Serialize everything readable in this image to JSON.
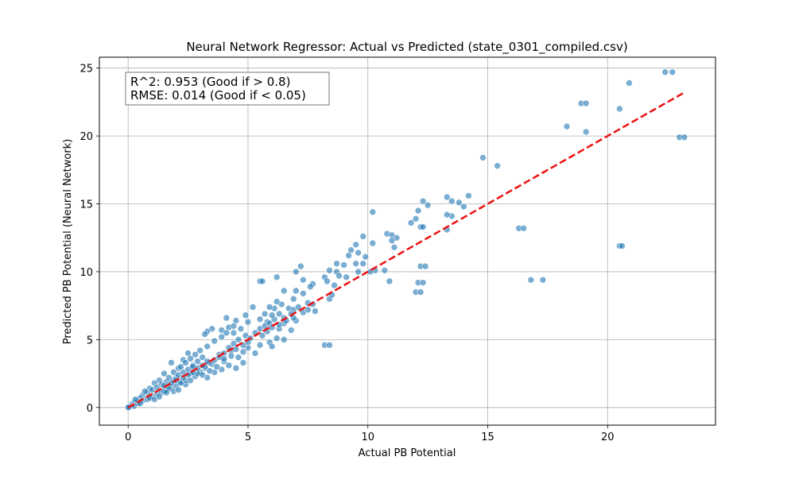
{
  "chart_data": {
    "type": "scatter",
    "title": "Neural Network Regressor: Actual vs Predicted (state_0301_compiled.csv)",
    "xlabel": "Actual PB Potential",
    "ylabel": "Predicted PB Potential (Neural Network)",
    "xlim": [
      -1.2,
      24.5
    ],
    "ylim": [
      -1.3,
      25.8
    ],
    "xticks": [
      0,
      5,
      10,
      15,
      20
    ],
    "yticks": [
      0,
      5,
      10,
      15,
      20,
      25
    ],
    "grid": true,
    "point_color": "#1f77b4",
    "point_edge_color": "#ffffff",
    "point_opacity": 0.6,
    "annotation": {
      "line1": "R^2: 0.953 (Good if > 0.8)",
      "line2": "RMSE: 0.014 (Good if < 0.05)",
      "placement": "top-left"
    },
    "reference_line": {
      "style": "dashed",
      "color": "#ee1111",
      "x": [
        0,
        23.2
      ],
      "y": [
        0,
        23.2
      ]
    },
    "points": [
      [
        22.4,
        24.7
      ],
      [
        22.7,
        24.7
      ],
      [
        20.9,
        23.9
      ],
      [
        18.9,
        22.4
      ],
      [
        19.1,
        22.4
      ],
      [
        20.5,
        22.0
      ],
      [
        18.3,
        20.7
      ],
      [
        19.1,
        20.3
      ],
      [
        23.0,
        19.9
      ],
      [
        23.2,
        19.9
      ],
      [
        14.8,
        18.4
      ],
      [
        15.4,
        17.8
      ],
      [
        14.2,
        15.6
      ],
      [
        13.3,
        15.5
      ],
      [
        13.5,
        15.2
      ],
      [
        13.8,
        15.1
      ],
      [
        12.3,
        15.2
      ],
      [
        12.5,
        14.9
      ],
      [
        14.0,
        14.8
      ],
      [
        13.5,
        14.1
      ],
      [
        13.3,
        14.2
      ],
      [
        12.1,
        14.5
      ],
      [
        12.0,
        13.9
      ],
      [
        11.8,
        13.6
      ],
      [
        12.2,
        13.3
      ],
      [
        12.3,
        13.3
      ],
      [
        10.2,
        14.4
      ],
      [
        13.3,
        13.1
      ],
      [
        10.8,
        12.8
      ],
      [
        11.0,
        12.7
      ],
      [
        11.2,
        12.5
      ],
      [
        11.0,
        12.3
      ],
      [
        9.8,
        12.6
      ],
      [
        10.2,
        12.1
      ],
      [
        9.5,
        12.0
      ],
      [
        11.1,
        11.8
      ],
      [
        9.3,
        11.6
      ],
      [
        9.6,
        11.4
      ],
      [
        9.2,
        11.2
      ],
      [
        9.9,
        11.1
      ],
      [
        9.5,
        10.6
      ],
      [
        9.8,
        10.6
      ],
      [
        8.7,
        10.6
      ],
      [
        9.0,
        10.5
      ],
      [
        10.3,
        10.1
      ],
      [
        10.7,
        10.1
      ],
      [
        10.1,
        10.0
      ],
      [
        9.6,
        10.0
      ],
      [
        8.7,
        10.0
      ],
      [
        8.4,
        10.1
      ],
      [
        8.2,
        9.6
      ],
      [
        8.8,
        9.7
      ],
      [
        9.1,
        9.6
      ],
      [
        8.3,
        9.3
      ],
      [
        8.6,
        9.0
      ],
      [
        7.7,
        9.1
      ],
      [
        7.3,
        9.4
      ],
      [
        7.0,
        10.0
      ],
      [
        7.2,
        10.4
      ],
      [
        10.9,
        9.3
      ],
      [
        16.3,
        13.2
      ],
      [
        16.5,
        13.2
      ],
      [
        12.2,
        10.4
      ],
      [
        12.4,
        10.4
      ],
      [
        12.1,
        9.2
      ],
      [
        12.3,
        9.2
      ],
      [
        12.0,
        8.5
      ],
      [
        12.2,
        8.5
      ],
      [
        16.8,
        9.4
      ],
      [
        17.3,
        9.4
      ],
      [
        20.5,
        11.9
      ],
      [
        20.6,
        11.9
      ],
      [
        5.5,
        9.3
      ],
      [
        5.6,
        9.3
      ],
      [
        6.2,
        9.6
      ],
      [
        8.2,
        4.6
      ],
      [
        8.4,
        4.6
      ],
      [
        7.8,
        7.1
      ],
      [
        8.4,
        8.0
      ],
      [
        8.5,
        8.3
      ],
      [
        7.6,
        8.9
      ],
      [
        7.3,
        8.4
      ],
      [
        7.0,
        8.6
      ],
      [
        6.9,
        8.0
      ],
      [
        6.5,
        8.6
      ],
      [
        6.4,
        7.6
      ],
      [
        6.2,
        7.8
      ],
      [
        6.7,
        7.3
      ],
      [
        6.9,
        7.2
      ],
      [
        7.5,
        7.7
      ],
      [
        7.0,
        6.4
      ],
      [
        6.5,
        6.2
      ],
      [
        6.3,
        6.9
      ],
      [
        6.1,
        7.3
      ],
      [
        5.9,
        7.4
      ],
      [
        5.8,
        6.3
      ],
      [
        5.7,
        6.9
      ],
      [
        5.5,
        6.5
      ],
      [
        5.2,
        7.4
      ],
      [
        5.0,
        6.3
      ],
      [
        4.9,
        6.8
      ],
      [
        4.5,
        6.4
      ],
      [
        4.7,
        5.8
      ],
      [
        4.1,
        6.6
      ],
      [
        4.4,
        5.5
      ],
      [
        4.2,
        5.9
      ],
      [
        3.9,
        5.7
      ],
      [
        3.5,
        5.8
      ],
      [
        3.3,
        5.6
      ],
      [
        3.2,
        5.4
      ],
      [
        6.8,
        5.7
      ],
      [
        6.5,
        5.0
      ],
      [
        6.2,
        5.1
      ],
      [
        5.9,
        4.8
      ],
      [
        6.0,
        4.5
      ],
      [
        5.5,
        4.6
      ],
      [
        5.3,
        4.0
      ],
      [
        5.0,
        4.4
      ],
      [
        4.8,
        4.1
      ],
      [
        4.6,
        3.7
      ],
      [
        4.3,
        4.2
      ],
      [
        4.0,
        3.4
      ],
      [
        3.8,
        3.9
      ],
      [
        3.5,
        3.2
      ],
      [
        3.2,
        2.9
      ],
      [
        3.1,
        3.7
      ],
      [
        2.9,
        3.4
      ],
      [
        2.7,
        3.1
      ],
      [
        2.6,
        2.5
      ],
      [
        2.8,
        2.3
      ],
      [
        3.3,
        2.2
      ],
      [
        3.6,
        2.6
      ],
      [
        3.9,
        2.8
      ],
      [
        4.2,
        3.1
      ],
      [
        4.5,
        2.9
      ],
      [
        4.8,
        3.3
      ],
      [
        2.5,
        4.0
      ],
      [
        2.3,
        3.5
      ],
      [
        2.1,
        2.9
      ],
      [
        1.9,
        2.6
      ],
      [
        2.0,
        2.2
      ],
      [
        2.2,
        1.9
      ],
      [
        2.4,
        1.7
      ],
      [
        1.8,
        3.3
      ],
      [
        1.5,
        2.5
      ],
      [
        1.3,
        2.0
      ],
      [
        1.1,
        1.8
      ],
      [
        0.9,
        1.4
      ],
      [
        0.8,
        1.1
      ],
      [
        0.6,
        0.9
      ],
      [
        0.5,
        0.7
      ],
      [
        0.4,
        0.5
      ],
      [
        0.3,
        0.4
      ],
      [
        0.2,
        0.3
      ],
      [
        0.15,
        0.2
      ],
      [
        0.1,
        0.1
      ],
      [
        0.05,
        0.05
      ],
      [
        0.0,
        0.0
      ],
      [
        0.25,
        0.1
      ],
      [
        0.4,
        0.3
      ],
      [
        0.6,
        0.5
      ],
      [
        0.8,
        0.6
      ],
      [
        1.0,
        0.8
      ],
      [
        1.2,
        1.0
      ],
      [
        1.4,
        1.1
      ],
      [
        1.6,
        1.3
      ],
      [
        1.8,
        1.5
      ],
      [
        2.0,
        1.6
      ],
      [
        2.2,
        1.8
      ],
      [
        2.4,
        2.0
      ],
      [
        1.0,
        1.3
      ],
      [
        1.2,
        1.5
      ],
      [
        1.4,
        1.7
      ],
      [
        1.6,
        1.9
      ],
      [
        1.7,
        2.2
      ],
      [
        1.9,
        2.0
      ],
      [
        2.1,
        2.4
      ],
      [
        2.3,
        2.6
      ],
      [
        2.5,
        2.8
      ],
      [
        2.7,
        3.0
      ],
      [
        3.0,
        2.6
      ],
      [
        3.2,
        3.0
      ],
      [
        3.4,
        3.3
      ],
      [
        3.6,
        3.5
      ],
      [
        3.8,
        3.7
      ],
      [
        4.0,
        4.0
      ],
      [
        4.2,
        4.4
      ],
      [
        4.4,
        4.7
      ],
      [
        4.6,
        5.0
      ],
      [
        4.9,
        5.3
      ],
      [
        5.1,
        5.1
      ],
      [
        5.3,
        5.5
      ],
      [
        5.5,
        5.8
      ],
      [
        5.7,
        6.0
      ],
      [
        5.9,
        6.2
      ],
      [
        6.1,
        6.5
      ],
      [
        6.3,
        5.8
      ],
      [
        6.5,
        6.6
      ],
      [
        6.8,
        6.9
      ],
      [
        7.1,
        7.4
      ],
      [
        0.7,
        1.2
      ],
      [
        0.9,
        0.7
      ],
      [
        1.1,
        0.6
      ],
      [
        1.3,
        0.8
      ],
      [
        1.5,
        1.2
      ],
      [
        1.7,
        1.4
      ],
      [
        1.9,
        1.2
      ],
      [
        2.1,
        1.3
      ],
      [
        0.3,
        0.6
      ],
      [
        0.5,
        0.3
      ],
      [
        2.6,
        2.0
      ],
      [
        2.9,
        2.5
      ],
      [
        3.1,
        2.4
      ],
      [
        3.4,
        2.7
      ],
      [
        3.7,
        3.0
      ],
      [
        4.0,
        3.6
      ],
      [
        4.3,
        3.8
      ],
      [
        4.5,
        4.3
      ],
      [
        4.8,
        4.6
      ],
      [
        5.0,
        4.8
      ],
      [
        2.2,
        3.0
      ],
      [
        2.4,
        3.3
      ],
      [
        2.6,
        3.6
      ],
      [
        2.8,
        3.9
      ],
      [
        3.0,
        4.2
      ],
      [
        3.3,
        4.5
      ],
      [
        3.6,
        4.9
      ],
      [
        3.9,
        5.2
      ],
      [
        4.1,
        5.5
      ],
      [
        4.4,
        6.0
      ],
      [
        1.5,
        1.6
      ],
      [
        1.6,
        1.1
      ],
      [
        1.8,
        1.8
      ],
      [
        2.0,
        2.0
      ],
      [
        2.3,
        2.2
      ],
      [
        2.5,
        2.4
      ],
      [
        2.7,
        2.6
      ],
      [
        2.9,
        2.9
      ],
      [
        3.1,
        3.1
      ],
      [
        3.3,
        3.4
      ],
      [
        5.6,
        5.3
      ],
      [
        5.8,
        5.6
      ],
      [
        6.0,
        5.9
      ],
      [
        6.3,
        6.1
      ],
      [
        6.6,
        6.4
      ],
      [
        6.9,
        6.6
      ],
      [
        7.3,
        7.0
      ],
      [
        7.5,
        7.2
      ],
      [
        7.7,
        7.6
      ],
      [
        6.0,
        6.8
      ]
    ]
  }
}
